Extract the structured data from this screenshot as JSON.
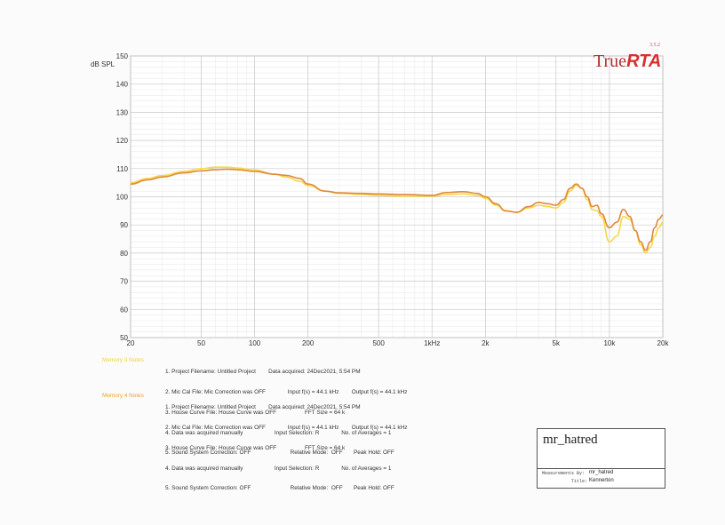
{
  "header": {
    "version": "3.5.2",
    "logo_true": "True",
    "logo_rta": "RTA"
  },
  "chart_data": {
    "type": "line",
    "ylabel": "dB SPL",
    "xscale": "log",
    "xlim": [
      20,
      20000
    ],
    "ylim": [
      50,
      150
    ],
    "x_ticks": [
      20,
      50,
      100,
      200,
      500,
      1000,
      2000,
      5000,
      10000,
      20000
    ],
    "x_tick_labels": [
      "20",
      "50",
      "100",
      "200",
      "500",
      "1kHz",
      "2k",
      "5k",
      "10k",
      "20k"
    ],
    "y_ticks": [
      50,
      60,
      70,
      80,
      90,
      100,
      110,
      120,
      130,
      140,
      150
    ],
    "y_tick_labels": [
      "50",
      "60",
      "70",
      "80",
      "90",
      "100",
      "110",
      "120",
      "130",
      "140",
      "150"
    ],
    "grid": true,
    "series": [
      {
        "color": "#f5d848",
        "x": [
          20,
          25,
          30,
          40,
          50,
          60,
          70,
          80,
          100,
          130,
          150,
          180,
          200,
          250,
          300,
          400,
          500,
          700,
          1000,
          1200,
          1500,
          1800,
          2000,
          2300,
          2600,
          3000,
          3500,
          4000,
          4500,
          5000,
          5500,
          6000,
          6500,
          7000,
          7500,
          8000,
          8500,
          9000,
          10000,
          11000,
          12000,
          13000,
          14000,
          15000,
          16000,
          17000,
          18000,
          19000,
          20000
        ],
        "y": [
          105,
          106.5,
          107.5,
          109,
          110,
          110.5,
          110.5,
          110.2,
          109.5,
          108,
          107,
          105.5,
          104,
          102,
          101.2,
          100.8,
          100.5,
          100.2,
          100.2,
          100.8,
          101,
          100.5,
          99.5,
          97,
          95,
          94.5,
          96,
          97,
          96.5,
          96,
          98,
          102,
          104,
          103,
          99,
          95.5,
          95,
          93,
          84,
          86,
          93,
          92,
          88,
          83,
          80,
          82,
          86,
          89,
          91
        ]
      },
      {
        "color": "#e0883a",
        "x": [
          20,
          25,
          30,
          40,
          50,
          60,
          70,
          80,
          100,
          130,
          150,
          180,
          200,
          250,
          300,
          400,
          500,
          700,
          1000,
          1200,
          1500,
          1800,
          2000,
          2300,
          2600,
          3000,
          3500,
          4000,
          4500,
          5000,
          5500,
          6000,
          6500,
          7000,
          7500,
          8000,
          8500,
          9000,
          10000,
          11000,
          12000,
          13000,
          14000,
          15000,
          16000,
          17000,
          18000,
          19000,
          20000
        ],
        "y": [
          104.5,
          106,
          107,
          108.5,
          109.2,
          109.6,
          109.8,
          109.6,
          109,
          108,
          107.6,
          106.5,
          104.5,
          102,
          101.4,
          101.2,
          101,
          100.8,
          100.5,
          101.5,
          101.8,
          101.2,
          100,
          97.5,
          95,
          94.5,
          96.5,
          98,
          97.5,
          97,
          99,
          103,
          104.5,
          103,
          100,
          96.5,
          97,
          94,
          89,
          91,
          95.5,
          93,
          88,
          84,
          81,
          84,
          89,
          92,
          93.5
        ]
      }
    ]
  },
  "notes": {
    "memory3": {
      "label": "Memory 3 Notes",
      "lines": [
        "1. Project Filename: Untitled Project        Data acquired: 24Dec2021, 5:54 PM",
        "2. Mic Cal File: Mic Correction was OFF              Input f(s) = 44.1 kHz        Output f(s) = 44.1 kHz",
        "3. House Curve File: House Curve was OFF                  FFT Size = 64 k",
        "4. Data was acquired manually                    Input Selection: R              No. of Averages = 1",
        "5. Sound System Correction: OFF                         Relative Mode:  OFF       Peak Hold: OFF"
      ]
    },
    "memory4": {
      "label": "Memory 4 Notes",
      "lines": [
        "1. Project Filename: Untitled Project        Data acquired: 24Dec2021, 5:54 PM",
        "2. Mic Cal File: Mic Correction was OFF              Input f(s) = 44.1 kHz        Output f(s) = 44.1 kHz",
        "3. House Curve File: House Curve was OFF                  FFT Size = 64 k",
        "4. Data was acquired manually                    Input Selection: R              No. of Averages = 1",
        "5. Sound System Correction: OFF                         Relative Mode:  OFF       Peak Hold: OFF"
      ]
    }
  },
  "stamp": {
    "signature": "mr_hatred",
    "measurements_label": "Measurements By:",
    "measurements_value": "mr_hatred",
    "title_label": "Title:",
    "title_value": "Kennerton"
  }
}
